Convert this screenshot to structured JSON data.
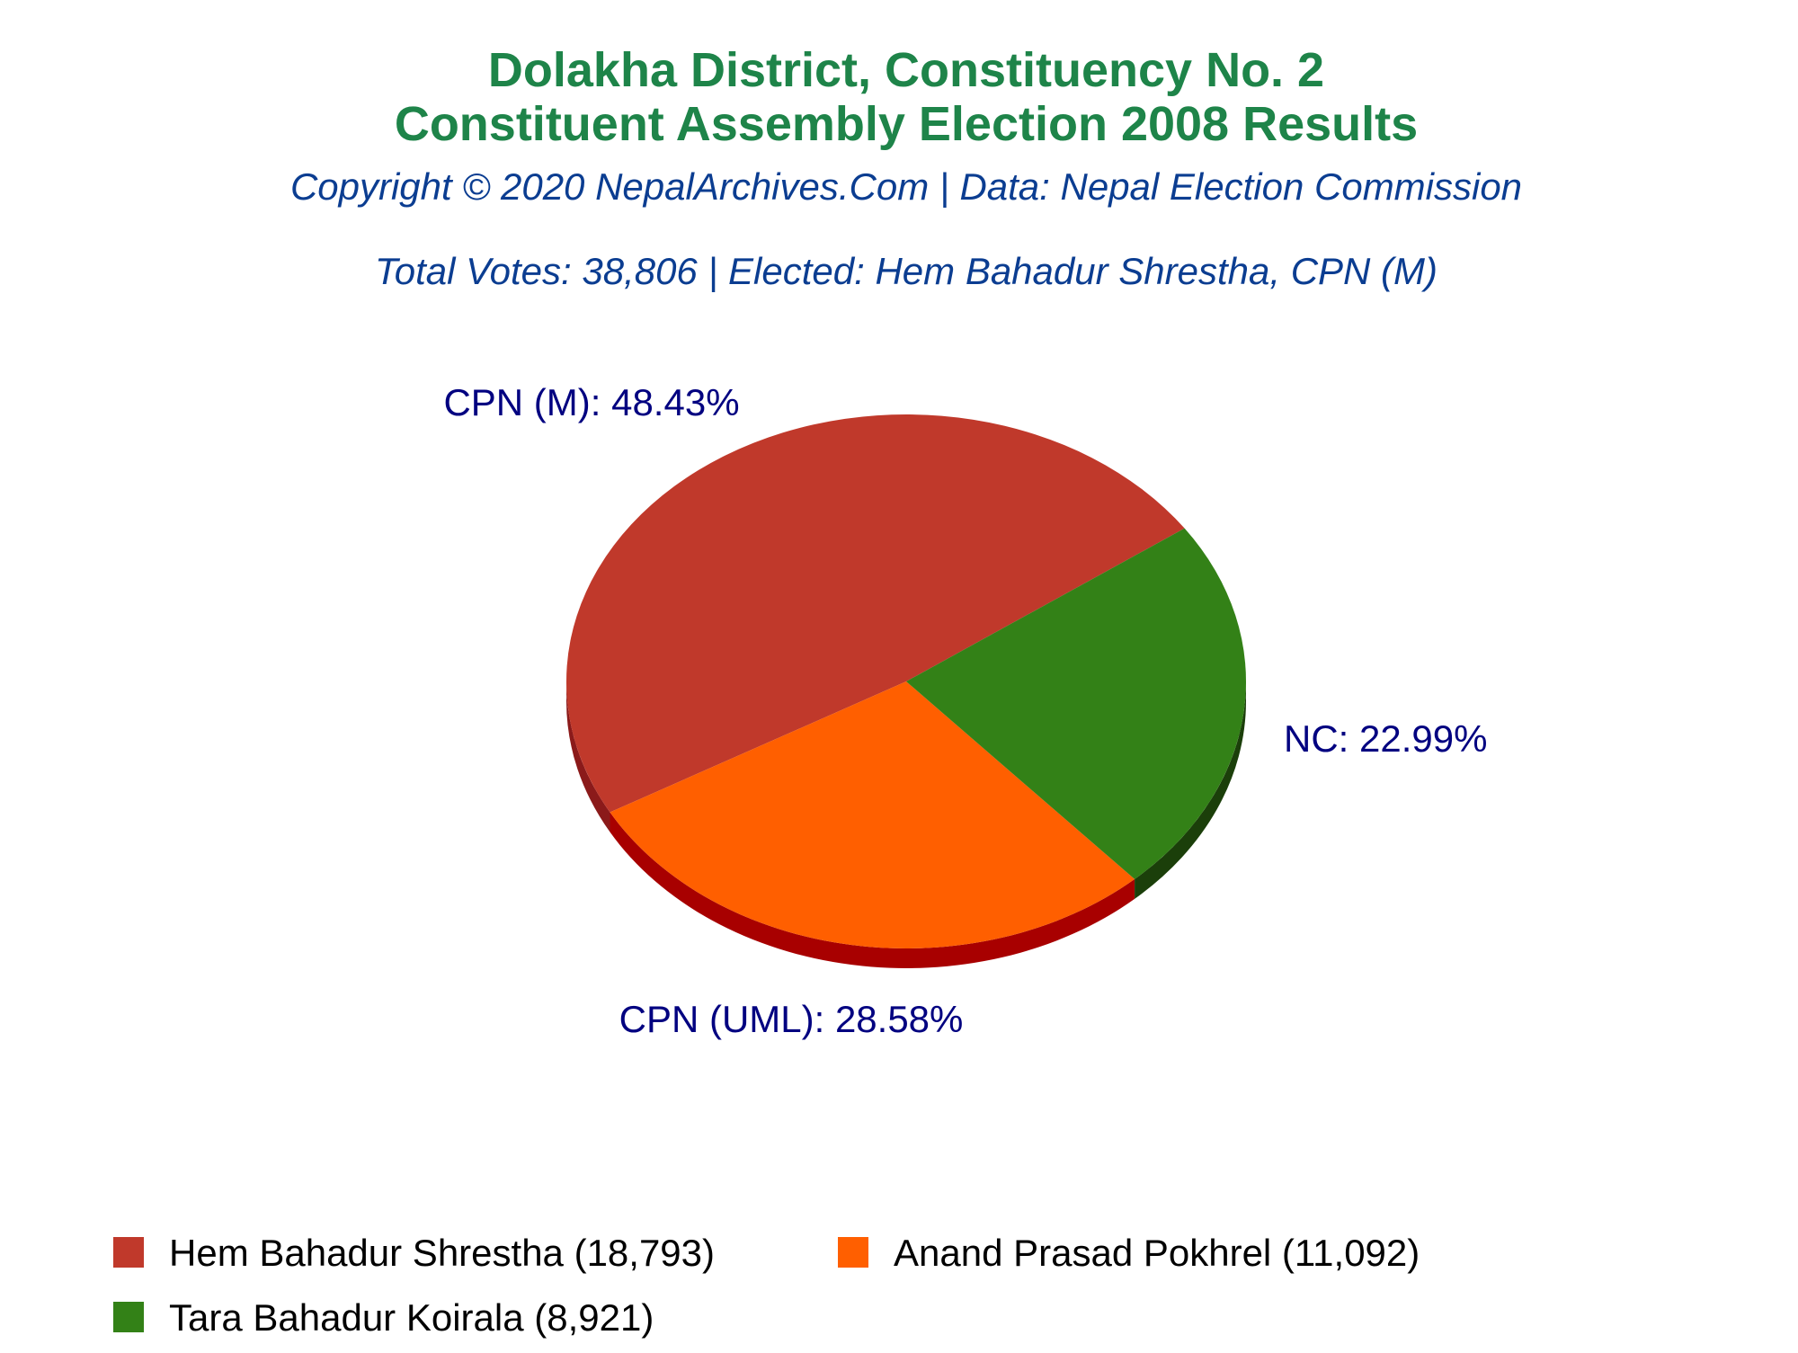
{
  "colors": {
    "title": "#1e8449",
    "subtitle": "#0b3d91",
    "label": "#000080",
    "series": [
      "#c0392b",
      "#ff5f00",
      "#338117"
    ],
    "series_side": [
      "#8b1a1a",
      "#a80000",
      "#1b3f0a"
    ]
  },
  "chart_data": {
    "type": "pie",
    "title": "Dolakha District, Constituency No. 2",
    "title_line2": "Constituent Assembly Election 2008 Results",
    "subtitle": "Copyright © 2020 NepalArchives.Com | Data: Nepal Election Commission",
    "info": "Total Votes: 38,806 | Elected: Hem Bahadur Shrestha, CPN (M)",
    "slices": [
      {
        "party": "CPN (M)",
        "percent": 48.43,
        "label": "CPN (M): 48.43%",
        "legend": "Hem Bahadur Shrestha (18,793)",
        "votes": 18793
      },
      {
        "party": "CPN (UML)",
        "percent": 28.58,
        "label": "CPN (UML): 28.58%",
        "legend": "Anand Prasad Pokhrel (11,092)",
        "votes": 11092
      },
      {
        "party": "NC",
        "percent": 22.99,
        "label": "NC: 22.99%",
        "legend": "Tara Bahadur Koirala (8,921)",
        "votes": 8921
      }
    ],
    "legend_placement": "bottom"
  }
}
